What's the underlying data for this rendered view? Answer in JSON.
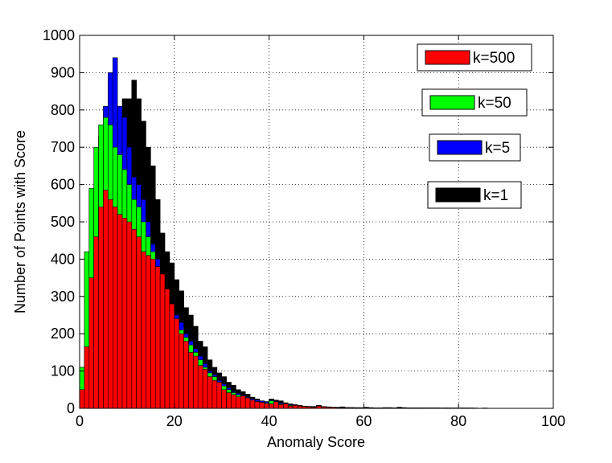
{
  "chart_data": {
    "type": "bar",
    "title": "",
    "xlabel": "Anomaly Score",
    "ylabel": "Number of Points with Score",
    "xlim": [
      0,
      100
    ],
    "ylim": [
      0,
      1000
    ],
    "xticks": [
      0,
      20,
      40,
      60,
      80,
      100
    ],
    "yticks": [
      0,
      100,
      200,
      300,
      400,
      500,
      600,
      700,
      800,
      900,
      1000
    ],
    "grid": true,
    "legend_placement": "right, stacked boxes",
    "bin_width": 1,
    "bin_start": 0,
    "series": [
      {
        "name": "k=1",
        "color": "#000000",
        "values": [
          10,
          30,
          90,
          220,
          390,
          500,
          540,
          650,
          740,
          830,
          830,
          880,
          830,
          770,
          700,
          650,
          560,
          470,
          420,
          390,
          345,
          315,
          270,
          250,
          220,
          180,
          165,
          130,
          110,
          95,
          85,
          70,
          62,
          50,
          45,
          38,
          30,
          25,
          20,
          18,
          25,
          22,
          20,
          15,
          12,
          10,
          8,
          6,
          5,
          5,
          8,
          5,
          4,
          3,
          3,
          4,
          2,
          2,
          2,
          2,
          3,
          2,
          1,
          1,
          2,
          2,
          1,
          3,
          2,
          1,
          1,
          1,
          1,
          1,
          1,
          1,
          1,
          1,
          1,
          1,
          1,
          1,
          1,
          1,
          0,
          1,
          0,
          0,
          0,
          0,
          0,
          0,
          0,
          0,
          0,
          0,
          0,
          0,
          0,
          0
        ]
      },
      {
        "name": "k=5",
        "color": "#0000ff",
        "values": [
          40,
          90,
          420,
          590,
          730,
          810,
          900,
          940,
          810,
          780,
          700,
          620,
          600,
          560,
          500,
          440,
          400,
          360,
          300,
          280,
          250,
          230,
          200,
          180,
          160,
          140,
          120,
          100,
          90,
          75,
          65,
          55,
          45,
          40,
          35,
          30,
          25,
          22,
          20,
          18,
          22,
          20,
          15,
          12,
          10,
          8,
          6,
          5,
          5,
          4,
          6,
          4,
          3,
          2,
          2,
          3,
          2,
          2,
          1,
          1,
          2,
          1,
          1,
          1,
          1,
          1,
          1,
          2,
          1,
          1,
          1,
          1,
          1,
          1,
          1,
          1,
          1,
          1,
          1,
          1,
          1,
          1,
          1,
          0,
          0,
          0,
          0,
          0,
          0,
          0,
          0,
          0,
          0,
          0,
          0,
          0,
          0,
          0,
          0,
          0
        ]
      },
      {
        "name": "k=50",
        "color": "#00ff00",
        "values": [
          110,
          420,
          590,
          700,
          760,
          780,
          760,
          700,
          680,
          640,
          600,
          560,
          540,
          500,
          460,
          420,
          380,
          340,
          300,
          270,
          240,
          210,
          190,
          170,
          150,
          130,
          110,
          95,
          85,
          70,
          60,
          50,
          42,
          36,
          30,
          25,
          22,
          18,
          16,
          15,
          20,
          18,
          12,
          10,
          8,
          6,
          5,
          4,
          3,
          3,
          5,
          3,
          2,
          2,
          2,
          2,
          1,
          1,
          1,
          1,
          2,
          1,
          1,
          1,
          1,
          1,
          1,
          1,
          1,
          1,
          1,
          1,
          1,
          1,
          1,
          1,
          0,
          1,
          0,
          0,
          0,
          0,
          0,
          0,
          0,
          0,
          0,
          0,
          0,
          0,
          0,
          0,
          0,
          0,
          0,
          0,
          0,
          0,
          0,
          0
        ]
      },
      {
        "name": "k=500",
        "color": "#ff0000",
        "values": [
          50,
          165,
          350,
          460,
          540,
          585,
          560,
          540,
          520,
          510,
          500,
          480,
          460,
          420,
          410,
          400,
          380,
          360,
          320,
          280,
          240,
          200,
          180,
          150,
          140,
          115,
          105,
          85,
          75,
          70,
          50,
          42,
          37,
          31,
          33,
          28,
          22,
          18,
          16,
          13,
          12,
          18,
          10,
          12,
          6,
          8,
          6,
          5,
          4,
          3,
          6,
          4,
          3,
          3,
          2,
          2,
          2,
          1,
          1,
          1,
          2,
          1,
          1,
          1,
          1,
          1,
          1,
          1,
          1,
          1,
          1,
          1,
          1,
          1,
          0,
          1,
          0,
          1,
          0,
          0,
          0,
          0,
          0,
          0,
          0,
          0,
          0,
          0,
          0,
          0,
          0,
          0,
          0,
          0,
          0,
          0,
          0,
          0,
          0,
          0
        ]
      }
    ],
    "legend": [
      {
        "label": "k=500",
        "color": "#ff0000"
      },
      {
        "label": "k=50",
        "color": "#00ff00"
      },
      {
        "label": "k=5",
        "color": "#0000ff"
      },
      {
        "label": "k=1",
        "color": "#000000"
      }
    ]
  }
}
